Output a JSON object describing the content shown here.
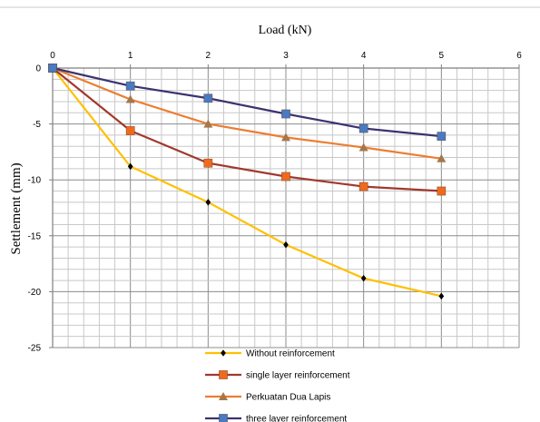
{
  "chart_data": {
    "type": "line",
    "xlabel": "Load (kN)",
    "ylabel": "Settlement  (mm)",
    "x": [
      0,
      1,
      2,
      3,
      4,
      5
    ],
    "xlim": [
      0,
      6
    ],
    "ylim": [
      -25,
      0
    ],
    "x_ticks": [
      "0",
      "1",
      "2",
      "3",
      "4",
      "5",
      "6"
    ],
    "y_ticks": [
      "0",
      "-5",
      "-10",
      "-15",
      "-20",
      "-25"
    ],
    "grid": true,
    "legend_position": "bottom",
    "series": [
      {
        "name": "Without reinforcement",
        "values": [
          0,
          -8.8,
          -12.0,
          -15.8,
          -18.8,
          -20.4
        ],
        "color": "#FFC000",
        "marker": "diamond",
        "marker_color": "#000000"
      },
      {
        "name": "single layer reinforcement",
        "values": [
          0,
          -5.6,
          -8.5,
          -9.7,
          -10.6,
          -11.0
        ],
        "color": "#A0392F",
        "marker": "square",
        "marker_color": "#F06A1E"
      },
      {
        "name": "Perkuatan Dua Lapis",
        "values": [
          0,
          -2.8,
          -5.0,
          -6.2,
          -7.1,
          -8.1
        ],
        "color": "#ED7D31",
        "marker": "triangle",
        "marker_color": "#A5774B"
      },
      {
        "name": "three layer reinforcement",
        "values": [
          0,
          -1.6,
          -2.7,
          -4.1,
          -5.4,
          -6.1
        ],
        "color": "#3C3270",
        "marker": "square",
        "marker_color": "#4A7AC0"
      }
    ]
  }
}
